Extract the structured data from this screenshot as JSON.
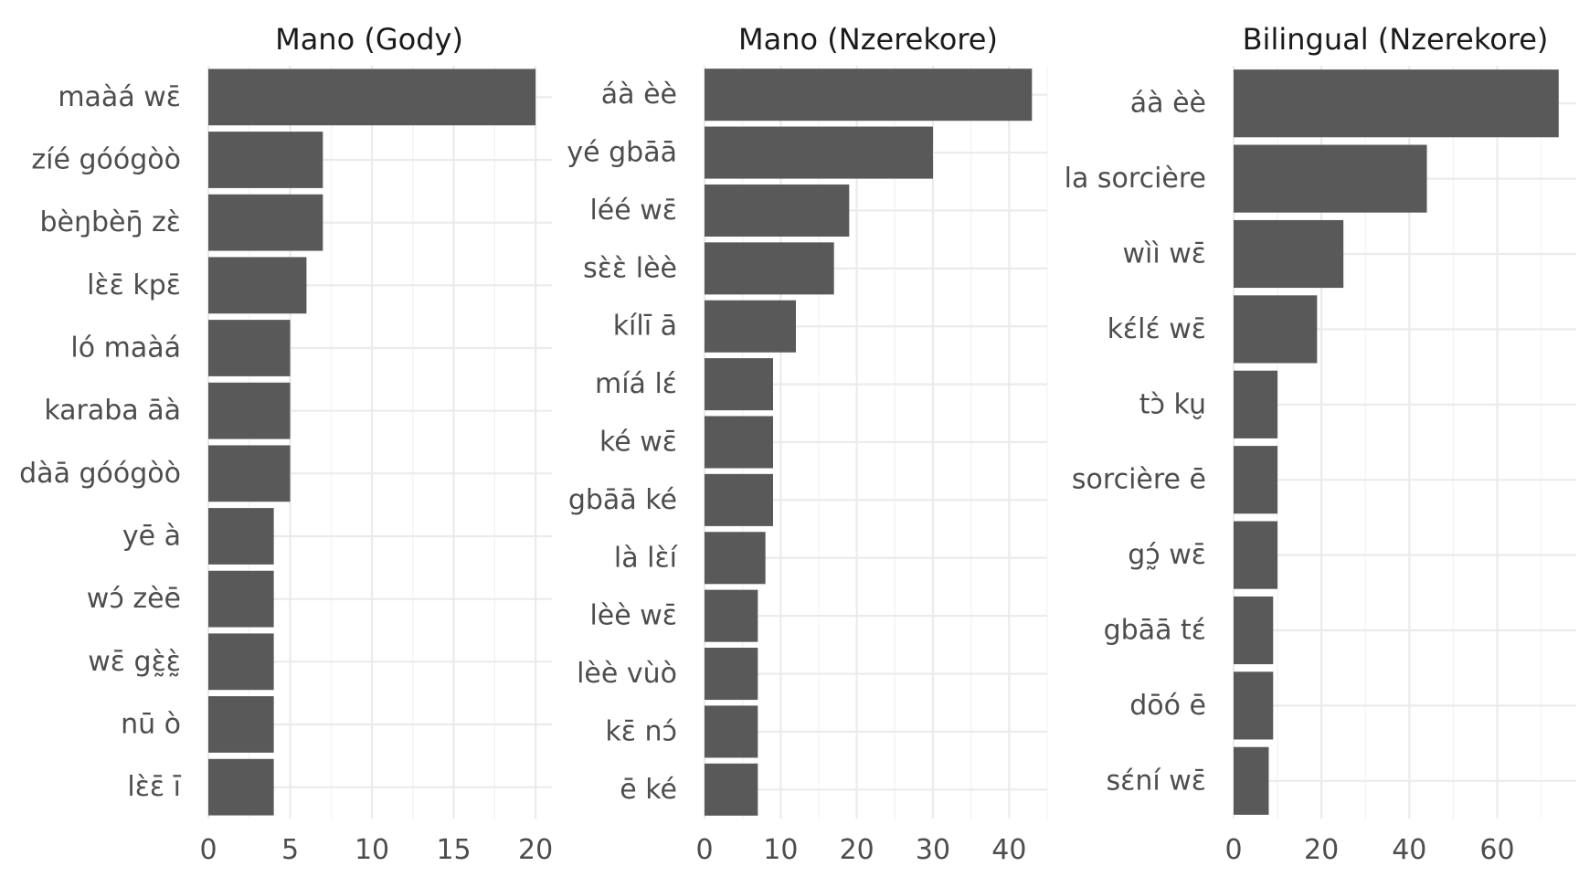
{
  "chart_data": [
    {
      "type": "bar",
      "orientation": "horizontal",
      "title": "Mano (Gody)",
      "categories": [
        "maàá wɛ̄",
        "zíé góógòò",
        "bèŋbèŋ̄ zɛ̀",
        "lɛ̀ɛ̄ kpɛ̄",
        "ló maàá",
        "karaba āà",
        "dàā góógòò",
        "yē à",
        "wɔ́ zèē",
        "wɛ̄ gɛ̰̀ɛ̰̀",
        "nū ò",
        "lɛ̀ɛ̄ ī"
      ],
      "values": [
        20,
        7,
        7,
        6,
        5,
        5,
        5,
        4,
        4,
        4,
        4,
        4
      ],
      "xticks": [
        0,
        5,
        10,
        15,
        20
      ],
      "xlim": [
        0,
        21
      ]
    },
    {
      "type": "bar",
      "orientation": "horizontal",
      "title": "Mano (Nzerekore)",
      "categories": [
        "áà èè",
        "yé gbāā",
        "léé wɛ̄",
        "sɛ̀ɛ̀ lèè",
        "kílī ā",
        "míá lɛ́",
        "ké wɛ̄",
        "gbāā ké",
        "là lɛ̀í",
        "lèè wɛ̄",
        "lèè vùò",
        "kɛ̄ nɔ́",
        "ē ké"
      ],
      "values": [
        43,
        30,
        19,
        17,
        12,
        9,
        9,
        9,
        8,
        7,
        7,
        7,
        7
      ],
      "xticks": [
        0,
        10,
        20,
        30,
        40
      ],
      "xlim": [
        0,
        45
      ]
    },
    {
      "type": "bar",
      "orientation": "horizontal",
      "title": "Bilingual (Nzerekore)",
      "categories": [
        "áà èè",
        "la sorcière",
        "wìì wɛ̄",
        "kɛ́lɛ́ wɛ̄",
        "tɔ̀ ku̮",
        "sorcière ē",
        "gɔ̰́ wɛ̄",
        "gbāā tɛ́",
        "dōó ē",
        "sɛ́ní wɛ̄"
      ],
      "values": [
        74,
        44,
        25,
        19,
        10,
        10,
        10,
        9,
        9,
        8
      ],
      "xticks": [
        0,
        20,
        40,
        60
      ],
      "xlim": [
        0,
        78
      ]
    }
  ]
}
